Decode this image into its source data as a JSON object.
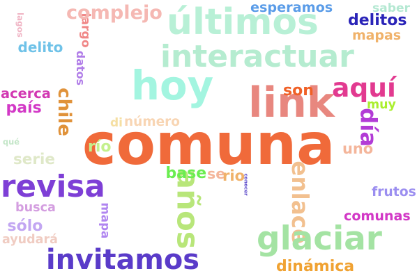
{
  "words": [
    {
      "text": "comuna",
      "color": "#f06a3a"
    },
    {
      "text": "hoy",
      "color": "#a3f5e0"
    },
    {
      "text": "interactuar",
      "color": "#b5ecd0"
    },
    {
      "text": "link",
      "color": "#e8877f"
    },
    {
      "text": "enlace",
      "color": "#f2c08f"
    },
    {
      "text": "años",
      "color": "#b8e67a"
    },
    {
      "text": "últimos",
      "color": "#b8f0d6"
    },
    {
      "text": "revisa",
      "color": "#7e3fd6"
    },
    {
      "text": "invitamos",
      "color": "#5a3bc9"
    },
    {
      "text": "mapa",
      "color": "#b085f0"
    },
    {
      "text": "glaciar",
      "color": "#a4e3a3"
    },
    {
      "text": "largo",
      "color": "#f08787"
    },
    {
      "text": "datos",
      "color": "#b07ce8"
    },
    {
      "text": "chile",
      "color": "#e0923a"
    },
    {
      "text": "aquí",
      "color": "#e23a90"
    },
    {
      "text": "conocer",
      "color": "#5a48c9"
    },
    {
      "text": "día",
      "color": "#b23bd6"
    },
    {
      "text": "complejo",
      "color": "#f5b8b3"
    },
    {
      "text": "número",
      "color": "#f8d5b3"
    },
    {
      "text": "dinámica",
      "color": "#f0a232"
    },
    {
      "text": "lagos",
      "color": "#f0b4c4"
    },
    {
      "text": "esperamos",
      "color": "#5a9ce8"
    },
    {
      "text": "saber",
      "color": "#b4e8d2"
    },
    {
      "text": "delitos",
      "color": "#2a24b8"
    },
    {
      "text": "mapas",
      "color": "#f0b26a"
    },
    {
      "text": "delito",
      "color": "#6fc2e8"
    },
    {
      "text": "son",
      "color": "#f06026"
    },
    {
      "text": "acerca",
      "color": "#d238b2"
    },
    {
      "text": "país",
      "color": "#d238c6"
    },
    {
      "text": "muy",
      "color": "#aaef2e"
    },
    {
      "text": "di",
      "color": "#f5dfa2"
    },
    {
      "text": "qué",
      "color": "#c4e6c8"
    },
    {
      "text": "río",
      "color": "#c4f08c"
    },
    {
      "text": "uno",
      "color": "#f4b59a"
    },
    {
      "text": "serie",
      "color": "#dfe8c8"
    },
    {
      "text": "base",
      "color": "#6aed50"
    },
    {
      "text": "se",
      "color": "#f4b59a"
    },
    {
      "text": "rio",
      "color": "#f0b26a"
    },
    {
      "text": "frutos",
      "color": "#9b8ef0"
    },
    {
      "text": "busca",
      "color": "#d49ee0"
    },
    {
      "text": "comunas",
      "color": "#d238c6"
    },
    {
      "text": "sólo",
      "color": "#c2a6f2"
    },
    {
      "text": "ayudará",
      "color": "#f0ccc2"
    }
  ]
}
